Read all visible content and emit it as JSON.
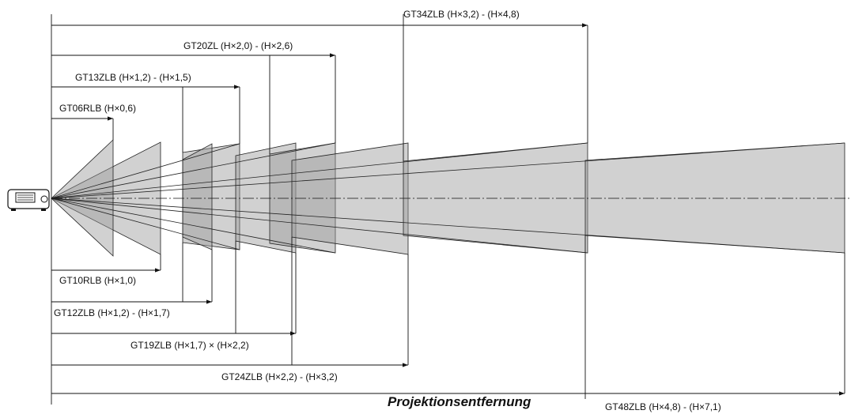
{
  "lenses": [
    {
      "label": "GT34ZLB (H×3,2) - (H×4,8)"
    },
    {
      "label": "GT20ZL (H×2,0) - (H×2,6)"
    },
    {
      "label": "GT13ZLB (H×1,2) - (H×1,5)"
    },
    {
      "label": "GT06RLB (H×0,6)"
    },
    {
      "label": "GT10RLB (H×1,0)"
    },
    {
      "label": "GT12ZLB (H×1,2) - (H×1,7)"
    },
    {
      "label": "GT19ZLB (H×1,7) × (H×2,2)"
    },
    {
      "label": "GT24ZLB (H×2,2) - (H×3,2)"
    },
    {
      "label": "GT48ZLB (H×4,8) - (H×7,1)"
    }
  ],
  "axis_label": "Projektionsentfernung"
}
